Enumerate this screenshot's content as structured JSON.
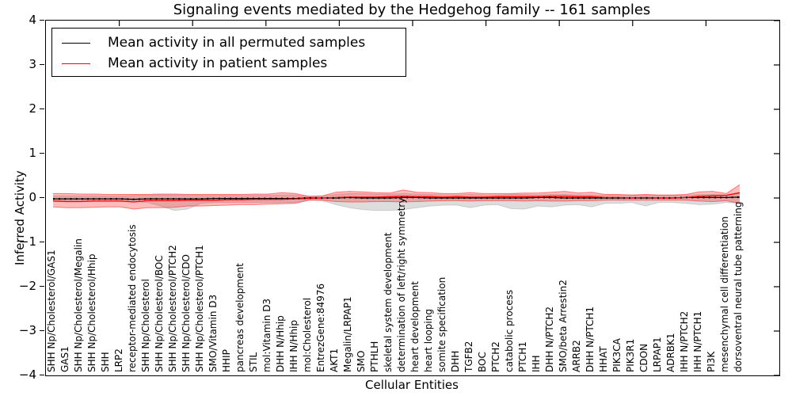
{
  "chart_data": {
    "type": "line",
    "title": "Signaling events mediated by the Hedgehog family -- 161 samples",
    "xlabel": "Cellular Entities",
    "ylabel": "Inferred Activity",
    "ylim": [
      -4,
      4
    ],
    "y_ticks": [
      4,
      3,
      2,
      1,
      0,
      -1,
      -2,
      -3,
      -4
    ],
    "y_tick_labels": [
      "4",
      "3",
      "2",
      "1",
      "0",
      "−1",
      "−2",
      "−3",
      "−4"
    ],
    "grid": false,
    "legend_position": "upper left",
    "sample_count_in_title": 161,
    "categories": [
      "SHH Np/Cholesterol/GAS1",
      "GAS1",
      "SHH Np/Cholesterol/Megalin",
      "SHH Np/Cholesterol/Hhip",
      "SHH",
      "LRP2",
      "receptor-mediated endocytosis",
      "SHH Np/Cholesterol",
      "SHH Np/Cholesterol/BOC",
      "SHH Np/Cholesterol/PTCH2",
      "SHH Np/Cholesterol/CDO",
      "SHH Np/Cholesterol/PTCH1",
      "SMO/Vitamin D3",
      "HHIP",
      "pancreas development",
      "STIL",
      "mol:Vitamin D3",
      "DHH N/Hhip",
      "IHH N/Hhip",
      "mol:Cholesterol",
      "EntrezGene:84976",
      "AKT1",
      "Megalin/LRPAP1",
      "SMO",
      "PTHLH",
      "skeletal system development",
      "determination of left/right symmetry",
      "heart development",
      "heart looping",
      "somite specification",
      "DHH",
      "TGFB2",
      "BOC",
      "PTCH2",
      "catabolic process",
      "PTCH1",
      "IHH",
      "DHH N/PTCH2",
      "SMO/beta Arrestin2",
      "ARRB2",
      "DHH N/PTCH1",
      "HHAT",
      "PIK3CA",
      "PIK3R1",
      "CDON",
      "LRPAP1",
      "ADRBK1",
      "IHH N/PTCH2",
      "IHH N/PTCH1",
      "PI3K",
      "mesenchymal cell differentiation",
      "dorsoventral neural tube patterning"
    ],
    "series": [
      {
        "name": "Mean activity in all permuted samples",
        "color": "#000000",
        "band_color": "#909090",
        "values": [
          -0.02,
          -0.02,
          -0.02,
          -0.02,
          -0.02,
          -0.02,
          -0.03,
          -0.02,
          -0.02,
          -0.02,
          -0.02,
          -0.02,
          -0.01,
          -0.01,
          -0.01,
          -0.01,
          -0.01,
          -0.01,
          -0.01,
          0,
          0,
          0,
          0.01,
          0,
          0,
          0,
          0.01,
          0.01,
          0,
          0,
          0,
          0,
          0,
          0,
          0,
          0,
          0.01,
          0.01,
          0,
          0,
          0,
          0,
          0,
          0,
          0,
          0,
          0,
          0.01,
          0.01,
          0.01,
          0.01,
          0.02
        ],
        "band_upper": [
          0.05,
          0.05,
          0.05,
          0.05,
          0.05,
          0.05,
          0.06,
          0.07,
          0.07,
          0.07,
          0.07,
          0.06,
          0.06,
          0.06,
          0.06,
          0.06,
          0.06,
          0.07,
          0.07,
          0.03,
          0.04,
          0.08,
          0.1,
          0.1,
          0.09,
          0.09,
          0.1,
          0.09,
          0.08,
          0.07,
          0.07,
          0.08,
          0.07,
          0.07,
          0.08,
          0.08,
          0.07,
          0.08,
          0.08,
          0.07,
          0.07,
          0.06,
          0.06,
          0.06,
          0.07,
          0.06,
          0.06,
          0.06,
          0.08,
          0.08,
          0.07,
          0.1
        ],
        "band_lower": [
          -0.06,
          -0.06,
          -0.06,
          -0.06,
          -0.06,
          -0.06,
          -0.08,
          -0.1,
          -0.18,
          -0.28,
          -0.25,
          -0.12,
          -0.1,
          -0.1,
          -0.1,
          -0.1,
          -0.1,
          -0.1,
          -0.1,
          -0.05,
          -0.06,
          -0.15,
          -0.22,
          -0.26,
          -0.28,
          -0.28,
          -0.26,
          -0.22,
          -0.18,
          -0.16,
          -0.16,
          -0.22,
          -0.16,
          -0.15,
          -0.24,
          -0.25,
          -0.18,
          -0.2,
          -0.16,
          -0.15,
          -0.2,
          -0.12,
          -0.12,
          -0.1,
          -0.18,
          -0.1,
          -0.1,
          -0.12,
          -0.15,
          -0.14,
          -0.1,
          -0.12
        ]
      },
      {
        "name": "Mean activity in patient samples",
        "color": "#ff0000",
        "band_color": "#ff2020",
        "values": [
          -0.07,
          -0.08,
          -0.08,
          -0.07,
          -0.07,
          -0.07,
          -0.09,
          -0.06,
          -0.06,
          -0.06,
          -0.05,
          -0.05,
          -0.05,
          -0.04,
          -0.04,
          -0.03,
          -0.03,
          -0.03,
          -0.02,
          -0.01,
          0,
          0.01,
          0.02,
          0.02,
          0.02,
          0.03,
          0.04,
          0.03,
          0.03,
          0.02,
          0.03,
          0.02,
          0.02,
          0.03,
          0.03,
          0.03,
          0.03,
          0.04,
          0.04,
          0.03,
          0.03,
          0.01,
          0.01,
          0,
          0.01,
          0,
          0,
          0.01,
          0.04,
          0.05,
          0.06,
          0.12
        ],
        "band_upper": [
          0.1,
          0.1,
          0.09,
          0.09,
          0.08,
          0.08,
          0.08,
          0.08,
          0.09,
          0.09,
          0.08,
          0.08,
          0.08,
          0.08,
          0.08,
          0.09,
          0.09,
          0.12,
          0.1,
          0.04,
          0.05,
          0.13,
          0.15,
          0.14,
          0.12,
          0.11,
          0.18,
          0.13,
          0.12,
          0.1,
          0.1,
          0.12,
          0.1,
          0.1,
          0.1,
          0.11,
          0.11,
          0.13,
          0.15,
          0.11,
          0.13,
          0.08,
          0.08,
          0.07,
          0.08,
          0.07,
          0.07,
          0.08,
          0.14,
          0.15,
          0.1,
          0.3
        ],
        "band_lower": [
          -0.2,
          -0.22,
          -0.22,
          -0.21,
          -0.2,
          -0.2,
          -0.25,
          -0.22,
          -0.22,
          -0.21,
          -0.18,
          -0.18,
          -0.17,
          -0.16,
          -0.15,
          -0.15,
          -0.14,
          -0.13,
          -0.12,
          -0.05,
          -0.05,
          -0.08,
          -0.09,
          -0.09,
          -0.08,
          -0.08,
          -0.09,
          -0.08,
          -0.07,
          -0.06,
          -0.06,
          -0.07,
          -0.06,
          -0.06,
          -0.06,
          -0.07,
          -0.06,
          -0.07,
          -0.07,
          -0.06,
          -0.06,
          -0.05,
          -0.05,
          -0.05,
          -0.05,
          -0.05,
          -0.05,
          -0.05,
          -0.07,
          -0.08,
          -0.06,
          -0.12
        ]
      }
    ]
  }
}
